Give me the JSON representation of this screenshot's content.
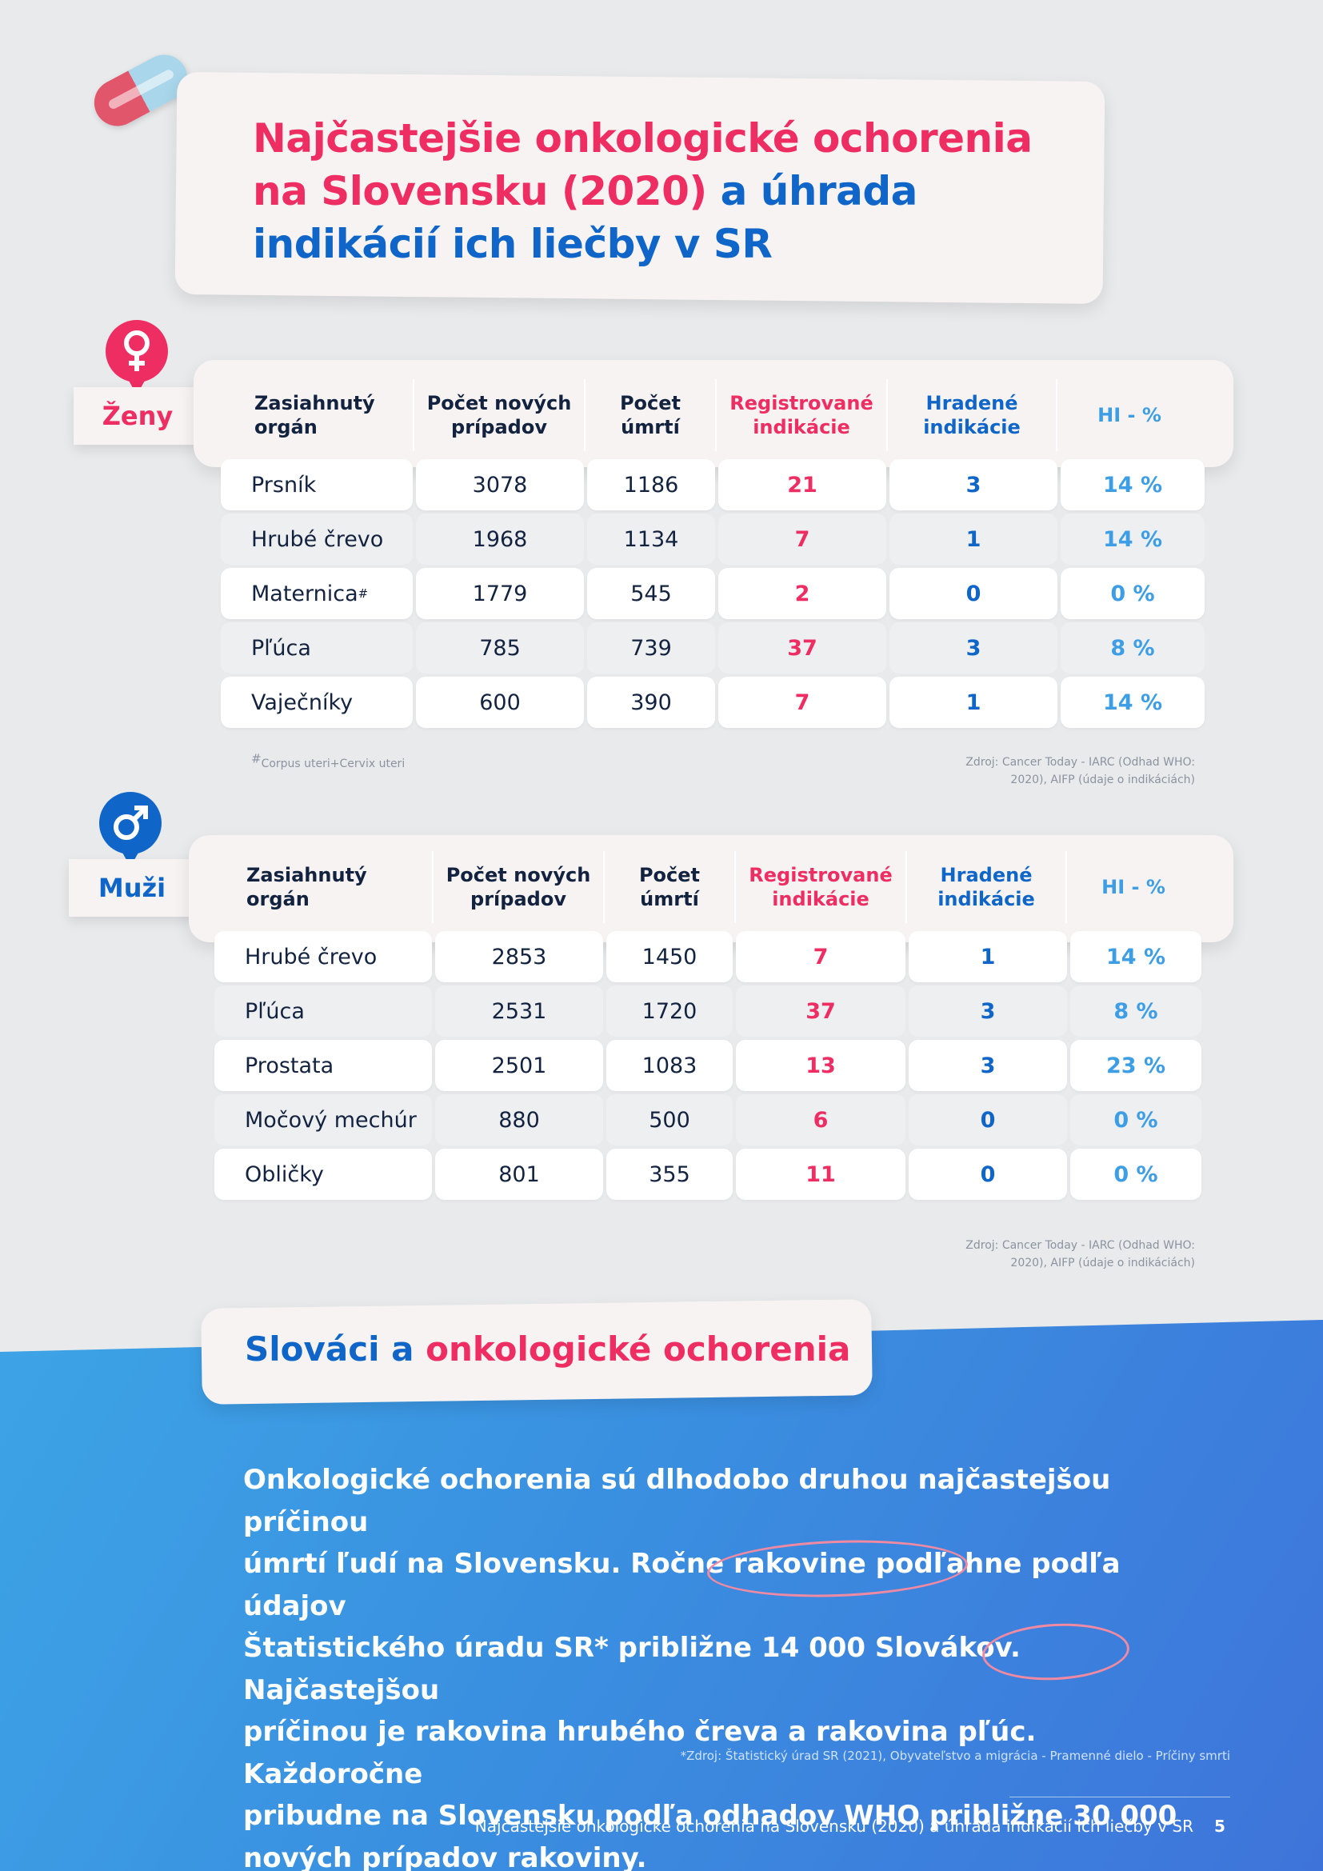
{
  "title": {
    "line1": "Najčastejšie onkologické ochorenia",
    "line2_a": "na Slovensku (2020)",
    "line2_b": " a úhrada",
    "line3": "indikácií ich liečby v SR"
  },
  "women": {
    "label": "Ženy",
    "icon": "female-symbol-icon",
    "headers": [
      "Zasiahnutý orgán",
      "Počet nových prípadov",
      "Počet úmrtí",
      "Registrované indikácie",
      "Hradené indikácie",
      "HI - %"
    ],
    "rows": [
      {
        "organ": "Prsník",
        "mark": "",
        "new": "3078",
        "deaths": "1186",
        "reg": "21",
        "paid": "3",
        "hi": "14 %"
      },
      {
        "organ": "Hrubé črevo",
        "mark": "",
        "new": "1968",
        "deaths": "1134",
        "reg": "7",
        "paid": "1",
        "hi": "14 %"
      },
      {
        "organ": "Maternica",
        "mark": "#",
        "new": "1779",
        "deaths": "545",
        "reg": "2",
        "paid": "0",
        "hi": "0 %"
      },
      {
        "organ": "Pľúca",
        "mark": "",
        "new": "785",
        "deaths": "739",
        "reg": "37",
        "paid": "3",
        "hi": "8 %"
      },
      {
        "organ": "Vaječníky",
        "mark": "",
        "new": "600",
        "deaths": "390",
        "reg": "7",
        "paid": "1",
        "hi": "14 %"
      }
    ],
    "footnote_mark": "#",
    "footnote": "Corpus uteri+Cervix uteri",
    "source_line1": "Zdroj: Cancer Today - IARC (Odhad WHO:",
    "source_line2": "2020), AIFP (údaje o indikáciách)"
  },
  "men": {
    "label": "Muži",
    "icon": "male-symbol-icon",
    "headers": [
      "Zasiahnutý orgán",
      "Počet nových prípadov",
      "Počet úmrtí",
      "Registrované indikácie",
      "Hradené indikácie",
      "HI - %"
    ],
    "rows": [
      {
        "organ": "Hrubé črevo",
        "new": "2853",
        "deaths": "1450",
        "reg": "7",
        "paid": "1",
        "hi": "14 %"
      },
      {
        "organ": "Pľúca",
        "new": "2531",
        "deaths": "1720",
        "reg": "37",
        "paid": "3",
        "hi": "8 %"
      },
      {
        "organ": "Prostata",
        "new": "2501",
        "deaths": "1083",
        "reg": "13",
        "paid": "3",
        "hi": "23 %"
      },
      {
        "organ": "Močový mechúr",
        "new": "880",
        "deaths": "500",
        "reg": "6",
        "paid": "0",
        "hi": "0 %"
      },
      {
        "organ": "Obličky",
        "new": "801",
        "deaths": "355",
        "reg": "11",
        "paid": "0",
        "hi": "0 %"
      }
    ],
    "source_line1": "Zdroj: Cancer Today - IARC (Odhad WHO:",
    "source_line2": "2020), AIFP (údaje o indikáciách)"
  },
  "section": {
    "title_a": "Slováci a",
    "title_b": " onkologické ochorenia",
    "line1": "Onkologické ochorenia sú dlhodobo druhou najčastejšou príčinou",
    "line2": "úmrtí ľudí na Slovensku. Ročne rakovine podľahne podľa údajov",
    "line3": "Štatistického úradu SR* približne 14 000 Slovákov. Najčastejšou",
    "line4": "príčinou je rakovina hrubého čreva a rakovina pľúc. Každoročne",
    "line5": "pribudne na Slovensku podľa odhadov WHO približne 30 000",
    "line6": "nových prípadov rakoviny.",
    "source": "*Zdroj:  Štatistický úrad SR (2021), Obyvateľstvo a migrácia - Pramenné dielo - Príčiny smrti"
  },
  "footer": {
    "text": "Najčastejšie onkologické ochorenia na Slovensku (2020) a úhrada indikácií ich liečby v SR",
    "page": "5"
  },
  "colors": {
    "pink": "#ee2e62",
    "blue": "#1066c8",
    "light_blue": "#3d9ee6",
    "navy": "#13233f"
  }
}
